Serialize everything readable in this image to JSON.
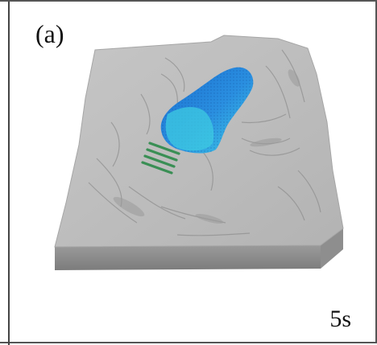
{
  "panel": {
    "label": "(a)",
    "time": "5s"
  },
  "colors": {
    "terrain_top": "#b9b9b9",
    "terrain_side": "#8a8a8a",
    "slide_deep": "#1f7fd6",
    "slide_light": "#35c8e0",
    "barrier": "#3f9a5a"
  },
  "icons": {
    "scene": "landslide-terrain-model"
  }
}
